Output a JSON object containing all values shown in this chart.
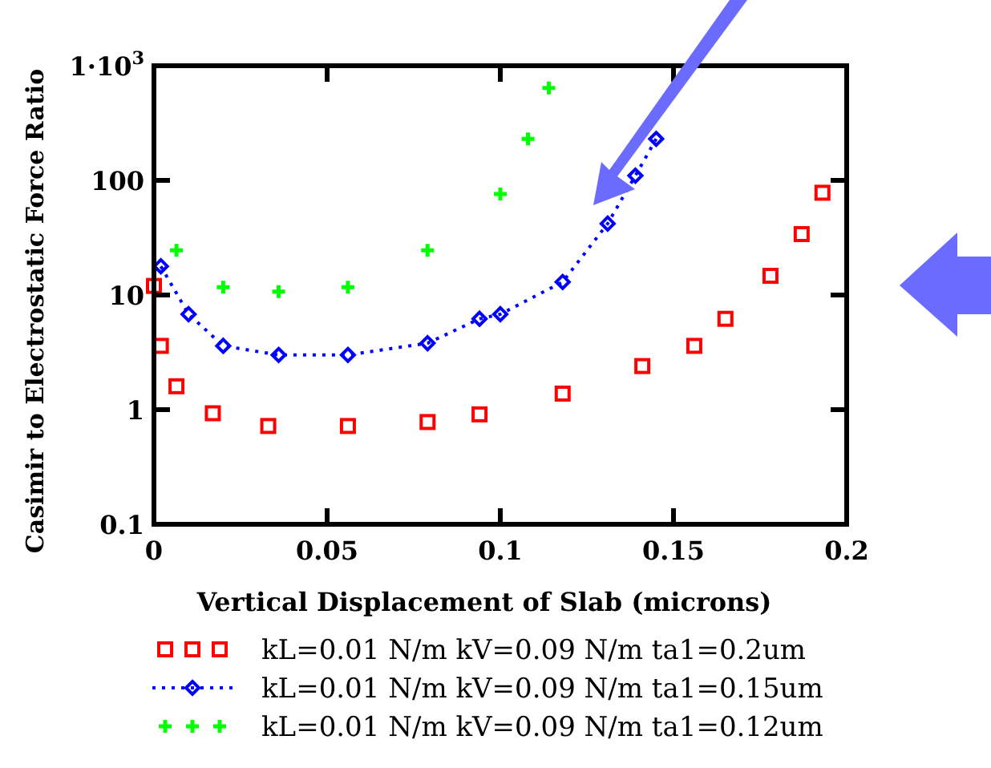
{
  "chart_data": {
    "type": "scatter",
    "xlabel": "Vertical Displacement of Slab (microns)",
    "ylabel": "Casimir to Electrostatic Force Ratio",
    "log": "y",
    "xlim": [
      0,
      0.2
    ],
    "ylim": [
      0.1,
      1000
    ],
    "xticks": [
      0,
      0.05,
      0.1,
      0.15,
      0.2
    ],
    "yticks": [
      0.1,
      1,
      10,
      100,
      {
        "value": 1000,
        "label": "1·10$^{3}$"
      }
    ],
    "legend": "bottom",
    "series": [
      {
        "name": "kL=0.01 N/m kV=0.09 N/m ta1=0.2um",
        "color": "#ff0000",
        "marker": "square",
        "x": [
          0,
          0.002,
          0.0065,
          0.017,
          0.033,
          0.056,
          0.079,
          0.094,
          0.118,
          0.141,
          0.156,
          0.165,
          0.178,
          0.187,
          0.193
        ],
        "values": [
          12,
          3.6,
          1.6,
          0.93,
          0.72,
          0.72,
          0.78,
          0.91,
          1.38,
          2.4,
          3.6,
          6.2,
          14.7,
          34,
          78
        ]
      },
      {
        "name": "kL=0.01 N/m kV=0.09 N/m ta1=0.15um",
        "color": "#0000ff",
        "type": "line",
        "line_style": "dotted",
        "marker": "diamond",
        "x": [
          0.002,
          0.01,
          0.02,
          0.036,
          0.056,
          0.079,
          0.094,
          0.1,
          0.118,
          0.131,
          0.139,
          0.145
        ],
        "values": [
          17.8,
          6.8,
          3.6,
          3.0,
          3.0,
          3.8,
          6.2,
          6.8,
          13,
          42,
          110,
          230
        ]
      },
      {
        "name": "kL=0.01 N/m kV=0.09 N/m ta1=0.12um",
        "color": "#00ff00",
        "marker": "cross",
        "x": [
          0.0065,
          0.02,
          0.036,
          0.056,
          0.079,
          0.1,
          0.108,
          0.114
        ],
        "values": [
          24.5,
          11.7,
          10.7,
          11.7,
          24.5,
          76,
          230,
          640
        ]
      }
    ]
  }
}
